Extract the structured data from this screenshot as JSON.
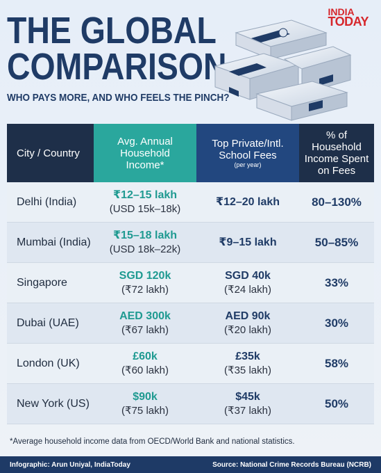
{
  "brand": {
    "line1": "INDIA",
    "line2": "TODAY"
  },
  "title": {
    "line1": "THE GLOBAL",
    "line2": "COMPARISON"
  },
  "subtitle": "WHO PAYS MORE, AND WHO FEELS THE PINCH?",
  "icons": {
    "illustration": "money-stack-icon"
  },
  "colors": {
    "teal": "#2aa79d",
    "navy": "#1f3b66",
    "dark": "#1e2f49",
    "blue": "#22477f",
    "brand_red": "#d6262b"
  },
  "table": {
    "headers": {
      "city": "City / Country",
      "income": "Avg. Annual Household Income*",
      "fees": "Top Private/Intl. School Fees",
      "fees_sub": "(per year)",
      "share": "% of Household Income Spent on Fees"
    },
    "rows": [
      {
        "city": "Delhi (India)",
        "income": "₹12–15 lakh",
        "income_sub": "(USD 15k–18k)",
        "fees": "₹12–20 lakh",
        "fees_sub": "",
        "share": "80–130%"
      },
      {
        "city": "Mumbai (India)",
        "income": "₹15–18 lakh",
        "income_sub": "(USD 18k–22k)",
        "fees": "₹9–15 lakh",
        "fees_sub": "",
        "share": "50–85%"
      },
      {
        "city": "Singapore",
        "income": "SGD 120k",
        "income_sub": "(₹72 lakh)",
        "fees": "SGD 40k",
        "fees_sub": "(₹24 lakh)",
        "share": "33%"
      },
      {
        "city": "Dubai (UAE)",
        "income": "AED 300k",
        "income_sub": "(₹67 lakh)",
        "fees": "AED 90k",
        "fees_sub": "(₹20 lakh)",
        "share": "30%"
      },
      {
        "city": "London (UK)",
        "income": "£60k",
        "income_sub": "(₹60 lakh)",
        "fees": "£35k",
        "fees_sub": "(₹35 lakh)",
        "share": "58%"
      },
      {
        "city": "New York (US)",
        "income": "$90k",
        "income_sub": "(₹75 lakh)",
        "fees": "$45k",
        "fees_sub": "(₹37 lakh)",
        "share": "50%"
      }
    ]
  },
  "footnote": "*Average household income data from OECD/World Bank and national statistics.",
  "footer": {
    "credit": "Infographic: Arun Uniyal, IndiaToday",
    "source": "Source: National Crime Records Bureau (NCRB)"
  }
}
